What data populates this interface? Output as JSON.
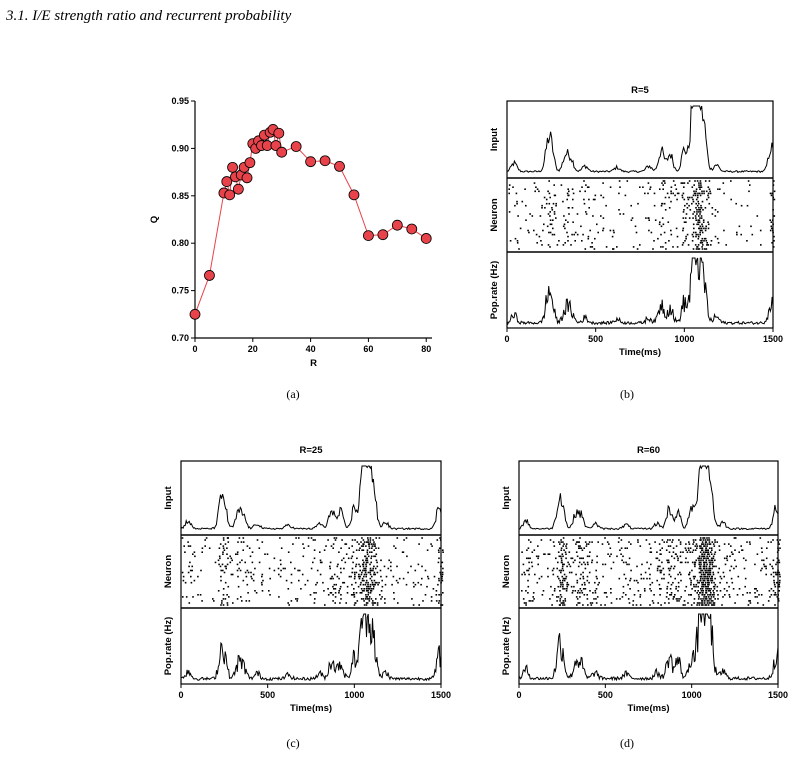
{
  "section_heading": "3.1.  I/E strength ratio and recurrent probability",
  "captions": [
    "(a)",
    "(b)",
    "(c)",
    "(d)"
  ],
  "chart_data": [
    {
      "id": "a",
      "type": "scatter",
      "xlabel": "R",
      "ylabel": "Q",
      "xlim": [
        0,
        82
      ],
      "ylim": [
        0.7,
        0.95
      ],
      "xticks": [
        "0",
        "20",
        "40",
        "60",
        "80"
      ],
      "yticks": [
        "0.70",
        "0.75",
        "0.80",
        "0.85",
        "0.90",
        "0.95"
      ],
      "marker_color": "#e8434a",
      "line_color": "#e8434a",
      "x": [
        0,
        5,
        10,
        11,
        12,
        13,
        14,
        15,
        16,
        17,
        18,
        19,
        20,
        21,
        22,
        23,
        24,
        25,
        26,
        27,
        28,
        29,
        30,
        35,
        40,
        45,
        50,
        55,
        60,
        65,
        70,
        75,
        80
      ],
      "y": [
        0.725,
        0.766,
        0.853,
        0.865,
        0.851,
        0.88,
        0.87,
        0.857,
        0.872,
        0.88,
        0.869,
        0.885,
        0.905,
        0.9,
        0.908,
        0.903,
        0.914,
        0.903,
        0.917,
        0.92,
        0.903,
        0.916,
        0.896,
        0.902,
        0.886,
        0.887,
        0.881,
        0.851,
        0.808,
        0.809,
        0.819,
        0.815,
        0.805
      ]
    },
    {
      "id": "b",
      "type": "raster",
      "title": "R=5",
      "rows": [
        "Input",
        "Neuron",
        "Pop.rate (Hz)"
      ],
      "xlabel": "Time(ms)",
      "xlim": [
        0,
        1500
      ],
      "xticks": [
        "0",
        "500",
        "1000",
        "1500"
      ],
      "density": 0.75
    },
    {
      "id": "c",
      "type": "raster",
      "title": "R=25",
      "rows": [
        "Input",
        "Neuron",
        "Pop.rate (Hz)"
      ],
      "xlabel": "Time(ms)",
      "xlim": [
        0,
        1500
      ],
      "xticks": [
        "0",
        "500",
        "1000",
        "1500"
      ],
      "density": 1.0
    },
    {
      "id": "d",
      "type": "raster",
      "title": "R=60",
      "rows": [
        "Input",
        "Neuron",
        "Pop.rate (Hz)"
      ],
      "xlabel": "Time(ms)",
      "xlim": [
        0,
        1500
      ],
      "xticks": [
        "0",
        "500",
        "1000",
        "1500"
      ],
      "density": 1.7
    }
  ]
}
